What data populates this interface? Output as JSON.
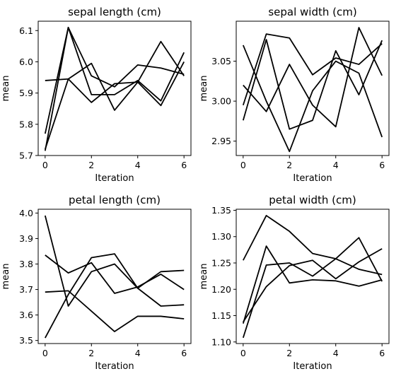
{
  "chart_data": [
    {
      "type": "line",
      "title": "sepal length (cm)",
      "xlabel": "Iteration",
      "ylabel": "mean",
      "x": [
        0,
        1,
        2,
        3,
        4,
        5,
        6
      ],
      "xticks": [
        0,
        2,
        4,
        6
      ],
      "xlim": [
        -0.3,
        6.3
      ],
      "ylim": [
        5.7,
        6.13
      ],
      "yticks": [
        5.7,
        5.8,
        5.9,
        6.0,
        6.1
      ],
      "ytick_labels": [
        "5.7",
        "5.8",
        "5.9",
        "6.0",
        "6.1"
      ],
      "grid": false,
      "series": [
        {
          "values": [
            5.94,
            5.945,
            5.87,
            5.93,
            5.935,
            6.065,
            5.955
          ]
        },
        {
          "values": [
            5.77,
            6.11,
            5.895,
            5.895,
            5.94,
            5.875,
            6.03
          ]
        },
        {
          "values": [
            5.72,
            5.945,
            5.995,
            5.845,
            5.935,
            5.86,
            6.0
          ]
        },
        {
          "values": [
            5.715,
            6.11,
            5.955,
            5.92,
            5.99,
            5.98,
            5.96
          ]
        }
      ]
    },
    {
      "type": "line",
      "title": "sepal width (cm)",
      "xlabel": "Iteration",
      "ylabel": "mean",
      "x": [
        0,
        1,
        2,
        3,
        4,
        5,
        6
      ],
      "xticks": [
        0,
        2,
        4,
        6
      ],
      "xlim": [
        -0.3,
        6.3
      ],
      "ylim": [
        2.932,
        3.1
      ],
      "yticks": [
        2.95,
        3.0,
        3.05
      ],
      "ytick_labels": [
        "2.95",
        "3.00",
        "3.05"
      ],
      "grid": false,
      "series": [
        {
          "values": [
            3.07,
            3.0,
            2.937,
            3.013,
            3.05,
            3.035,
            2.955
          ]
        },
        {
          "values": [
            2.995,
            3.084,
            3.079,
            3.033,
            3.054,
            3.046,
            3.072
          ]
        },
        {
          "values": [
            2.976,
            3.077,
            2.965,
            2.976,
            3.063,
            3.008,
            3.076
          ]
        },
        {
          "values": [
            3.02,
            2.987,
            3.046,
            2.995,
            2.968,
            3.092,
            3.032
          ]
        }
      ]
    },
    {
      "type": "line",
      "title": "petal length (cm)",
      "xlabel": "Iteration",
      "ylabel": "mean",
      "x": [
        0,
        1,
        2,
        3,
        4,
        5,
        6
      ],
      "xticks": [
        0,
        2,
        4,
        6
      ],
      "xlim": [
        -0.3,
        6.3
      ],
      "ylim": [
        3.488,
        4.015
      ],
      "yticks": [
        3.5,
        3.6,
        3.7,
        3.8,
        3.9,
        4.0
      ],
      "ytick_labels": [
        "3.5",
        "3.6",
        "3.7",
        "3.8",
        "3.9",
        "4.0"
      ],
      "grid": false,
      "series": [
        {
          "values": [
            3.99,
            3.635,
            3.77,
            3.8,
            3.705,
            3.635,
            3.64
          ]
        },
        {
          "values": [
            3.835,
            3.765,
            3.805,
            3.685,
            3.71,
            3.76,
            3.7
          ]
        },
        {
          "values": [
            3.51,
            3.68,
            3.825,
            3.84,
            3.705,
            3.77,
            3.775
          ]
        },
        {
          "values": [
            3.69,
            3.695,
            3.615,
            3.535,
            3.595,
            3.595,
            3.585
          ]
        }
      ]
    },
    {
      "type": "line",
      "title": "petal width (cm)",
      "xlabel": "Iteration",
      "ylabel": "mean",
      "x": [
        0,
        1,
        2,
        3,
        4,
        5,
        6
      ],
      "xticks": [
        0,
        2,
        4,
        6
      ],
      "xlim": [
        -0.3,
        6.3
      ],
      "ylim": [
        1.097,
        1.352
      ],
      "yticks": [
        1.1,
        1.15,
        1.2,
        1.25,
        1.3,
        1.35
      ],
      "ytick_labels": [
        "1.10",
        "1.15",
        "1.20",
        "1.25",
        "1.30",
        "1.35"
      ],
      "grid": false,
      "series": [
        {
          "values": [
            1.255,
            1.34,
            1.31,
            1.268,
            1.258,
            1.238,
            1.228
          ]
        },
        {
          "values": [
            1.135,
            1.282,
            1.212,
            1.218,
            1.216,
            1.206,
            1.218
          ]
        },
        {
          "values": [
            1.108,
            1.246,
            1.25,
            1.225,
            1.258,
            1.298,
            1.215
          ]
        },
        {
          "values": [
            1.138,
            1.205,
            1.245,
            1.255,
            1.22,
            1.252,
            1.277
          ]
        }
      ]
    }
  ]
}
